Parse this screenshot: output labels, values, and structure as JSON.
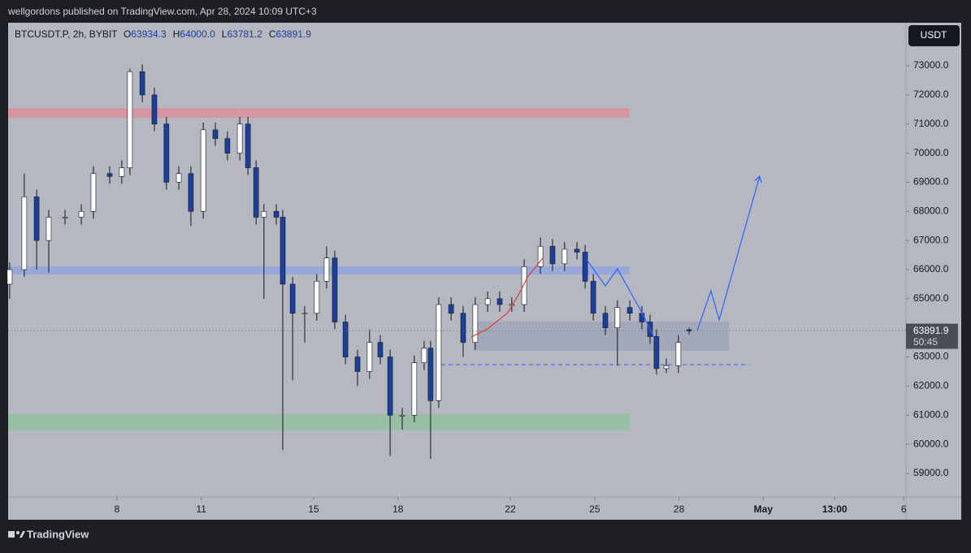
{
  "header": {
    "text": "wellgordons published on TradingView.com, Apr 28, 2024 10:09 UTC+3"
  },
  "branding": "TradingView",
  "chart_data": {
    "type": "candlestick",
    "currency": "USDT",
    "countdown": "50:45",
    "legend": {
      "symbol": "BTCUSDT.P, 2h, BYBIT",
      "labels": [
        "O",
        "H",
        "L",
        "C"
      ],
      "values": [
        "63934.3",
        "64000.0",
        "63781.2",
        "63891.9"
      ]
    },
    "x": [
      4.18,
      4.7,
      5.14,
      5.57,
      6.15,
      6.73,
      7.16,
      7.74,
      8.17,
      8.46,
      8.9,
      9.33,
      9.76,
      10.2,
      10.63,
      11.07,
      11.5,
      11.93,
      12.37,
      12.66,
      12.95,
      13.23,
      13.67,
      13.9,
      14.25,
      14.68,
      15.11,
      15.46,
      15.75,
      16.13,
      16.56,
      16.99,
      17.37,
      17.72,
      18.15,
      18.58,
      18.93,
      19.16,
      19.45,
      19.89,
      20.32,
      20.75,
      21.19,
      21.62,
      22.05,
      22.49,
      23.07,
      23.5,
      23.93,
      24.37,
      24.66,
      24.95,
      25.38,
      25.81,
      26.25,
      26.68,
      26.97,
      27.2,
      27.55,
      27.98,
      28.36
    ],
    "open": [
      65500,
      66000,
      68500,
      67000,
      67800,
      67800,
      68000,
      69300,
      69200,
      69500,
      72800,
      72000,
      71000,
      69000,
      69300,
      68000,
      70800,
      70500,
      70000,
      71000,
      69500,
      67800,
      68000,
      67800,
      65500,
      64500,
      64500,
      65600,
      66400,
      64200,
      63000,
      62500,
      63500,
      63000,
      61000,
      61000,
      62800,
      63300,
      61500,
      64800,
      64500,
      63500,
      64800,
      65000,
      64800,
      64800,
      66100,
      66800,
      66200,
      66700,
      66600,
      65600,
      64500,
      64000,
      64700,
      64500,
      64200,
      63700,
      62600,
      62700,
      63934.3
    ],
    "high": [
      66250,
      69300,
      68750,
      68050,
      68050,
      68250,
      69550,
      69550,
      69750,
      72900,
      73050,
      72250,
      71250,
      69550,
      69550,
      71050,
      71050,
      70750,
      71250,
      71250,
      69750,
      68250,
      68250,
      68050,
      65750,
      64750,
      65850,
      66800,
      66650,
      64450,
      63250,
      63950,
      63750,
      63250,
      61250,
      63050,
      63550,
      63550,
      65050,
      65050,
      64750,
      65050,
      65250,
      65250,
      65050,
      66350,
      67100,
      67050,
      66950,
      66950,
      66850,
      65850,
      64750,
      64950,
      64950,
      64750,
      64450,
      63950,
      62950,
      63750,
      64000
    ],
    "low": [
      65000,
      65750,
      66000,
      65900,
      67550,
      67550,
      67750,
      68950,
      68950,
      69250,
      71750,
      70750,
      68750,
      68750,
      67500,
      67750,
      70250,
      69750,
      69750,
      69250,
      67550,
      65000,
      67550,
      59800,
      62200,
      63500,
      64250,
      65350,
      63950,
      62750,
      62000,
      62250,
      62750,
      59600,
      60500,
      60750,
      62550,
      59500,
      61250,
      64250,
      63000,
      63250,
      64550,
      64550,
      64550,
      64550,
      65850,
      65950,
      65950,
      66350,
      65350,
      64250,
      63750,
      62700,
      64250,
      63950,
      63450,
      62400,
      62450,
      62450,
      63781.2
    ],
    "close": [
      66000,
      68500,
      67000,
      67800,
      67800,
      68000,
      69300,
      69200,
      69500,
      72800,
      72000,
      71000,
      69000,
      69300,
      68000,
      70800,
      70500,
      70000,
      71000,
      69500,
      67800,
      68000,
      67800,
      65500,
      64500,
      64500,
      65600,
      66400,
      64200,
      63000,
      62500,
      63500,
      63000,
      61000,
      61000,
      62800,
      63300,
      61500,
      64800,
      64500,
      63500,
      64800,
      65000,
      64800,
      64800,
      66100,
      66800,
      66200,
      66700,
      66600,
      65600,
      64500,
      64000,
      64700,
      64500,
      64200,
      63700,
      62600,
      62700,
      63500,
      63891.9
    ],
    "up_color": "#ffffff",
    "down_color": "#1c3f9a",
    "wick_color": "#131722",
    "xlim": [
      4.125,
      36.08
    ],
    "ylim": [
      58190,
      74480
    ],
    "xticks": [
      8,
      11,
      15,
      18,
      22,
      25,
      28,
      {
        "value": 31,
        "label": "May"
      },
      {
        "value": 33.54,
        "label": "13:00"
      },
      {
        "value": 36,
        "label": "6"
      }
    ],
    "yticks": [
      {
        "value": 59000,
        "label": "59000.0"
      },
      {
        "value": 60000,
        "label": "60000.0"
      },
      {
        "value": 61000,
        "label": "61000.0"
      },
      {
        "value": 62000,
        "label": "62000.0"
      },
      {
        "value": 63000,
        "label": "63000.0"
      },
      {
        "value": 64000,
        "label": "64000.0"
      },
      {
        "value": 65000,
        "label": "65000.0"
      },
      {
        "value": 66000,
        "label": "66000.0"
      },
      {
        "value": 67000,
        "label": "67000.0"
      },
      {
        "value": 68000,
        "label": "68000.0"
      },
      {
        "value": 69000,
        "label": "69000.0"
      },
      {
        "value": 70000,
        "label": "70000.0"
      },
      {
        "value": 71000,
        "label": "71000.0"
      },
      {
        "value": 72000,
        "label": "72000.0"
      },
      {
        "value": 73000,
        "label": "73000.0"
      }
    ],
    "grid": false,
    "zones": [
      {
        "x": [
          4.125,
          26.24
        ],
        "y": [
          71215,
          71550
        ],
        "color": "#e08a96"
      },
      {
        "x": [
          4.125,
          26.24
        ],
        "y": [
          65833,
          66110
        ],
        "color": "#8ea3e0"
      },
      {
        "x": [
          4.125,
          26.24
        ],
        "y": [
          60479,
          61037
        ],
        "color": "#8fc09a"
      },
      {
        "x": [
          20.69,
          29.78
        ],
        "y": [
          63212,
          64216
        ],
        "color": "#9da4b4"
      }
    ],
    "levels": [
      {
        "x": [
          19.54,
          30.5
        ],
        "y": 62738,
        "color": "#2962ff"
      }
    ],
    "drawings": [
      {
        "color": "#2962ff",
        "x": [
          24.72,
          25.38,
          25.81,
          26.68,
          27.11
        ],
        "y": [
          66335,
          65443,
          66028,
          64523,
          63686
        ]
      },
      {
        "color": "#2962ff",
        "x": [
          28.65,
          29.14,
          29.43,
          30.87
        ],
        "y": [
          63909,
          65275,
          64272,
          69207
        ],
        "arrow": true
      },
      {
        "color": "#e53935",
        "x": [
          20.61,
          21.19,
          21.91,
          22.34,
          22.63,
          23.15
        ],
        "y": [
          63686,
          63965,
          64523,
          65220,
          65777,
          66391
        ]
      }
    ]
  }
}
